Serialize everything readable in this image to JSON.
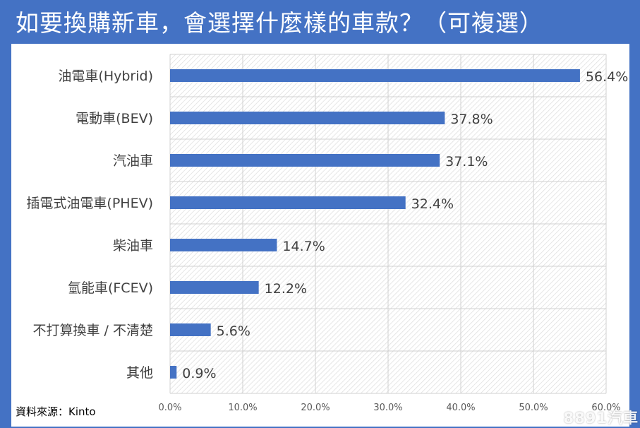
{
  "title": "如要換購新車，會選擇什麼樣的車款？（可複選）",
  "source": "資料來源：Kinto",
  "watermark": "8891汽車",
  "colors": {
    "background": "#4472c4",
    "bar": "#4472c4",
    "panel": "#ffffff"
  },
  "chart_data": {
    "type": "bar",
    "orientation": "horizontal",
    "categories": [
      "油電車(Hybrid)",
      "電動車(BEV)",
      "汽油車",
      "插電式油電車(PHEV)",
      "柴油車",
      "氫能車(FCEV)",
      "不打算換車 / 不清楚",
      "其他"
    ],
    "values": [
      56.4,
      37.8,
      37.1,
      32.4,
      14.7,
      12.2,
      5.6,
      0.9
    ],
    "value_labels": [
      "56.4%",
      "37.8%",
      "37.1%",
      "32.4%",
      "14.7%",
      "12.2%",
      "5.6%",
      "0.9%"
    ],
    "xlim": [
      0,
      60
    ],
    "xticks": [
      "0.0%",
      "10.0%",
      "20.0%",
      "30.0%",
      "40.0%",
      "50.0%",
      "60.0%"
    ],
    "grid": true,
    "legend": "none"
  }
}
